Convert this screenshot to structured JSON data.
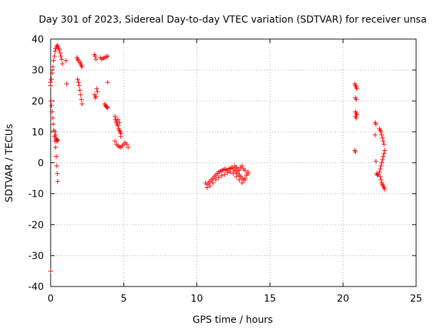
{
  "chart_data": {
    "type": "scatter",
    "title": "Day 301 of 2023, Sidereal Day-to-day VTEC variation (SDTVAR) for receiver unsa",
    "xlabel": "GPS time / hours",
    "ylabel": "SDTVAR / TECUs",
    "xlim": [
      0,
      25
    ],
    "ylim": [
      -40,
      40
    ],
    "xticks": [
      0,
      5,
      10,
      15,
      20,
      25
    ],
    "yticks": [
      -40,
      -30,
      -20,
      -10,
      0,
      10,
      20,
      30,
      40
    ],
    "grid": true,
    "marker": "+",
    "color": "#ff0000",
    "series": [
      {
        "name": "SDTVAR",
        "x": [
          0.0,
          0.05,
          0.1,
          0.15,
          0.2,
          0.25,
          0.3,
          0.35,
          0.4,
          0.45,
          0.5,
          0.55,
          0.6,
          0.65,
          0.7,
          0.75,
          0.8,
          0.02,
          0.06,
          0.1,
          0.14,
          0.18,
          0.22,
          0.26,
          0.3,
          0.34,
          0.38,
          0.42,
          0.45,
          0.48,
          0.3,
          0.33,
          0.36,
          0.39,
          0.42,
          0.45,
          0.48,
          0.0,
          -0.02,
          1.05,
          1.1,
          1.8,
          1.85,
          1.9,
          2.0,
          2.05,
          2.1,
          2.15,
          1.85,
          1.9,
          1.95,
          2.0,
          2.05,
          2.1,
          2.15,
          3.0,
          3.05,
          3.1,
          3.15,
          3.2,
          3.0,
          3.05,
          3.1,
          3.4,
          3.5,
          3.6,
          3.7,
          3.8,
          3.9,
          3.7,
          3.75,
          3.8,
          3.85,
          3.9,
          3.9,
          4.4,
          4.45,
          4.5,
          4.55,
          4.6,
          4.65,
          4.7,
          4.75,
          4.8,
          4.4,
          4.5,
          4.6,
          4.7,
          4.8,
          4.9,
          5.0,
          5.1,
          5.2,
          5.3,
          4.5,
          4.6,
          4.7,
          4.8,
          10.6,
          10.7,
          10.8,
          10.9,
          11.0,
          11.1,
          11.2,
          11.3,
          11.4,
          11.5,
          11.6,
          11.7,
          11.8,
          11.9,
          12.0,
          12.1,
          12.2,
          12.3,
          12.4,
          12.5,
          12.6,
          12.7,
          12.8,
          12.9,
          13.0,
          13.1,
          13.2,
          13.3,
          13.4,
          13.5,
          10.7,
          10.9,
          11.1,
          11.3,
          11.5,
          11.7,
          11.9,
          12.1,
          12.3,
          12.5,
          12.7,
          12.9,
          13.1,
          13.3,
          13.5,
          12.6,
          12.7,
          12.8,
          12.9,
          13.0,
          13.1,
          13.2,
          13.3,
          20.8,
          20.85,
          20.9,
          20.95,
          20.85,
          20.9,
          20.85,
          20.9,
          20.95,
          20.85,
          20.9,
          20.8,
          20.85,
          22.2,
          22.25,
          22.2,
          22.25,
          22.5,
          22.55,
          22.6,
          22.65,
          22.7,
          22.75,
          22.8,
          22.85,
          22.8,
          22.75,
          22.7,
          22.65,
          22.6,
          22.55,
          22.5,
          22.55,
          22.6,
          22.65,
          22.7,
          22.75,
          22.8,
          22.85,
          22.3,
          22.35,
          22.4,
          0.0
        ],
        "y": [
          25.0,
          27.0,
          29.0,
          31.0,
          33.0,
          34.5,
          36.0,
          37.0,
          37.5,
          38.0,
          37.5,
          37.0,
          36.5,
          35.5,
          34.5,
          33.5,
          32.0,
          20.0,
          18.5,
          16.5,
          14.5,
          12.5,
          10.5,
          8.5,
          7.0,
          5.0,
          2.0,
          -1.0,
          -3.5,
          -6.0,
          10.0,
          9.0,
          8.0,
          7.5,
          7.0,
          7.2,
          7.4,
          25.0,
          26.0,
          33.0,
          25.5,
          34.0,
          33.5,
          33.0,
          32.5,
          32.0,
          31.5,
          31.0,
          27.0,
          26.0,
          25.0,
          23.5,
          22.0,
          20.5,
          19.0,
          35.0,
          34.5,
          33.5,
          24.0,
          23.0,
          22.0,
          21.0,
          21.5,
          34.0,
          33.5,
          33.8,
          34.0,
          34.3,
          34.5,
          19.0,
          18.5,
          18.2,
          18.0,
          17.8,
          26.0,
          15.0,
          14.0,
          13.0,
          12.5,
          12.0,
          11.0,
          10.5,
          10.0,
          9.5,
          7.0,
          6.0,
          5.5,
          5.2,
          5.0,
          5.5,
          6.0,
          6.5,
          6.0,
          5.0,
          13.5,
          14.0,
          13.0,
          8.5,
          -6.5,
          -7.0,
          -6.5,
          -6.0,
          -5.5,
          -5.0,
          -4.5,
          -4.0,
          -3.5,
          -3.0,
          -2.8,
          -2.5,
          -2.3,
          -2.0,
          -2.2,
          -2.5,
          -2.0,
          -1.8,
          -1.5,
          -2.0,
          -2.5,
          -3.0,
          -3.5,
          -4.0,
          -4.5,
          -5.0,
          -5.5,
          -5.0,
          -4.0,
          -3.5,
          -8.0,
          -7.5,
          -6.5,
          -5.5,
          -4.8,
          -4.2,
          -3.8,
          -3.2,
          -3.0,
          -3.5,
          -4.5,
          -5.5,
          -6.5,
          -5.5,
          -3.0,
          -1.0,
          -1.5,
          -2.0,
          -2.5,
          -1.5,
          -1.0,
          -2.0,
          -2.5,
          25.5,
          25.0,
          24.5,
          24.0,
          21.0,
          20.5,
          16.5,
          16.0,
          15.5,
          15.0,
          14.5,
          4.0,
          3.5,
          13.0,
          12.5,
          9.0,
          0.5,
          11.0,
          10.5,
          10.0,
          9.0,
          8.0,
          7.0,
          6.0,
          4.0,
          3.0,
          2.0,
          1.0,
          0.0,
          -1.0,
          -2.0,
          -3.0,
          -4.5,
          -5.5,
          -6.5,
          -7.0,
          -7.5,
          -8.0,
          -8.5,
          -3.5,
          -4.0,
          -3.8,
          -35.0
        ]
      }
    ]
  }
}
